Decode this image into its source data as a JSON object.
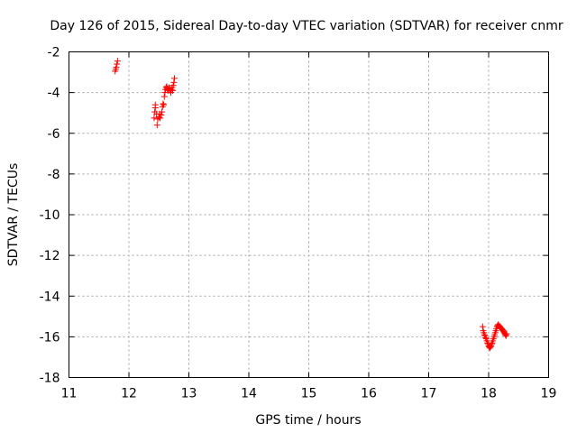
{
  "chart_data": {
    "type": "scatter",
    "title": "Day 126 of 2015, Sidereal Day-to-day VTEC variation (SDTVAR) for receiver cnmr",
    "xlabel": "GPS time / hours",
    "ylabel": "SDTVAR / TECUs",
    "xlim": [
      11,
      19
    ],
    "ylim": [
      -18,
      -2
    ],
    "x_ticks": [
      11,
      12,
      13,
      14,
      15,
      16,
      17,
      18,
      19
    ],
    "y_ticks": [
      -18,
      -16,
      -14,
      -12,
      -10,
      -8,
      -6,
      -4,
      -2
    ],
    "x_tick_labels": [
      "11",
      "12",
      "13",
      "14",
      "15",
      "16",
      "17",
      "18",
      "19"
    ],
    "y_tick_labels": [
      "-18",
      "-16",
      "-14",
      "-12",
      "-10",
      "-8",
      "-6",
      "-4",
      "-2"
    ],
    "grid": true,
    "marker": "+",
    "color": "#ff0000",
    "series": [
      {
        "points": [
          [
            11.77,
            -2.95
          ],
          [
            11.78,
            -2.85
          ],
          [
            11.79,
            -2.75
          ],
          [
            11.8,
            -2.6
          ],
          [
            11.81,
            -2.45
          ],
          [
            12.42,
            -5.25
          ],
          [
            12.43,
            -4.95
          ],
          [
            12.44,
            -4.75
          ],
          [
            12.44,
            -4.6
          ],
          [
            12.46,
            -5.05
          ],
          [
            12.47,
            -5.6
          ],
          [
            12.48,
            -5.3
          ],
          [
            12.5,
            -5.2
          ],
          [
            12.51,
            -5.05
          ],
          [
            12.52,
            -5.25
          ],
          [
            12.54,
            -5.1
          ],
          [
            12.55,
            -4.95
          ],
          [
            12.56,
            -4.7
          ],
          [
            12.57,
            -4.55
          ],
          [
            12.58,
            -4.6
          ],
          [
            12.59,
            -4.2
          ],
          [
            12.6,
            -4.0
          ],
          [
            12.61,
            -3.85
          ],
          [
            12.62,
            -3.75
          ],
          [
            12.63,
            -3.7
          ],
          [
            12.64,
            -3.8
          ],
          [
            12.65,
            -3.9
          ],
          [
            12.66,
            -3.85
          ],
          [
            12.67,
            -3.75
          ],
          [
            12.68,
            -3.8
          ],
          [
            12.69,
            -3.9
          ],
          [
            12.7,
            -4.0
          ],
          [
            12.71,
            -3.85
          ],
          [
            12.72,
            -3.75
          ],
          [
            12.73,
            -3.9
          ],
          [
            12.74,
            -3.65
          ],
          [
            12.75,
            -3.5
          ],
          [
            12.76,
            -3.3
          ],
          [
            17.9,
            -15.5
          ],
          [
            17.91,
            -15.7
          ],
          [
            17.92,
            -15.8
          ],
          [
            17.93,
            -15.9
          ],
          [
            17.94,
            -15.95
          ],
          [
            17.95,
            -16.05
          ],
          [
            17.96,
            -16.1
          ],
          [
            17.97,
            -16.2
          ],
          [
            17.98,
            -16.3
          ],
          [
            17.99,
            -16.35
          ],
          [
            18.0,
            -16.45
          ],
          [
            18.01,
            -16.5
          ],
          [
            18.02,
            -16.55
          ],
          [
            18.03,
            -16.5
          ],
          [
            18.04,
            -16.45
          ],
          [
            18.05,
            -16.35
          ],
          [
            18.06,
            -16.3
          ],
          [
            18.07,
            -16.2
          ],
          [
            18.08,
            -16.1
          ],
          [
            18.09,
            -16.0
          ],
          [
            18.1,
            -15.9
          ],
          [
            18.11,
            -15.8
          ],
          [
            18.12,
            -15.7
          ],
          [
            18.13,
            -15.6
          ],
          [
            18.14,
            -15.5
          ],
          [
            18.15,
            -15.45
          ],
          [
            18.16,
            -15.4
          ],
          [
            18.17,
            -15.45
          ],
          [
            18.18,
            -15.5
          ],
          [
            18.19,
            -15.5
          ],
          [
            18.2,
            -15.55
          ],
          [
            18.21,
            -15.6
          ],
          [
            18.22,
            -15.6
          ],
          [
            18.23,
            -15.65
          ],
          [
            18.24,
            -15.7
          ],
          [
            18.25,
            -15.75
          ],
          [
            18.26,
            -15.8
          ],
          [
            18.27,
            -15.85
          ],
          [
            18.28,
            -15.9
          ],
          [
            18.29,
            -15.95
          ],
          [
            18.3,
            -15.85
          ]
        ]
      }
    ]
  }
}
